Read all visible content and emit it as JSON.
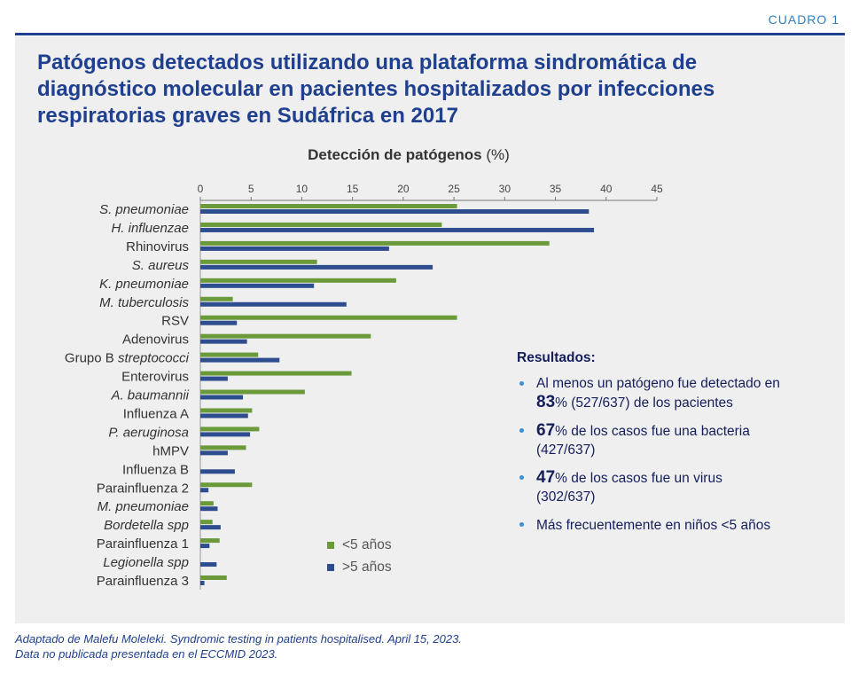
{
  "tag": "CUADRO 1",
  "title": "Patógenos detectados utilizando una plataforma sindromática de diagnóstico molecular en pacientes hospitalizados por infecciones respiratorias graves en Sudáfrica en 2017",
  "colors": {
    "accent": "#1f3f8f",
    "under5": "#6a9a3a",
    "over5": "#2e4d8f",
    "panel": "#efefef"
  },
  "chart_data": {
    "type": "bar",
    "orientation": "horizontal",
    "title": "Detección de patógenos",
    "title_unit": "(%)",
    "xlim": [
      0,
      45
    ],
    "ticks": [
      0,
      5,
      10,
      15,
      20,
      25,
      30,
      35,
      40,
      45
    ],
    "categories": [
      {
        "label": "S. pneumoniae",
        "italic": true
      },
      {
        "label": "H. influenzae",
        "italic": true
      },
      {
        "label": "Rhinovirus",
        "italic": false
      },
      {
        "label": "S. aureus",
        "italic": true
      },
      {
        "label": "K. pneumoniae",
        "italic": true
      },
      {
        "label": "M. tuberculosis",
        "italic": true
      },
      {
        "label": "RSV",
        "italic": false
      },
      {
        "label": "Adenovirus",
        "italic": false
      },
      {
        "label": "Grupo B ",
        "label_italic_part": "streptococci",
        "italic": false
      },
      {
        "label": "Enterovirus",
        "italic": false
      },
      {
        "label": "A. baumannii",
        "italic": true
      },
      {
        "label": "Influenza A",
        "italic": false
      },
      {
        "label": "P. aeruginosa",
        "italic": true
      },
      {
        "label": "hMPV",
        "italic": false
      },
      {
        "label": "Influenza B",
        "italic": false
      },
      {
        "label": "Parainfluenza 2",
        "italic": false
      },
      {
        "label": "M. pneumoniae",
        "italic": true
      },
      {
        "label": "Bordetella spp",
        "italic": true
      },
      {
        "label": "Parainfluenza 1",
        "italic": false
      },
      {
        "label": "Legionella spp",
        "italic": true
      },
      {
        "label": "Parainfluenza 3",
        "italic": false
      }
    ],
    "series": [
      {
        "name": "<5 años",
        "color": "#6a9a3a",
        "values": [
          25.3,
          23.8,
          34.4,
          11.5,
          19.3,
          3.2,
          25.3,
          16.8,
          5.7,
          14.9,
          10.3,
          5.1,
          5.8,
          4.5,
          0,
          5.1,
          1.3,
          1.2,
          1.9,
          0,
          2.6
        ]
      },
      {
        "name": ">5 años",
        "color": "#2e4d8f",
        "values": [
          38.3,
          38.8,
          18.6,
          22.9,
          11.2,
          14.4,
          3.6,
          4.6,
          7.8,
          2.7,
          4.2,
          4.7,
          4.9,
          2.7,
          3.4,
          0.8,
          1.7,
          2.0,
          0.9,
          1.6,
          0.4
        ]
      }
    ]
  },
  "results": {
    "heading": "Resultados:",
    "items": [
      {
        "pre": "Al menos un patógeno fue detectado en ",
        "big": "83",
        "post": "% (527/637) de los pacientes"
      },
      {
        "pre": "",
        "big": "67",
        "post": "% de los casos fue una bacteria (427/637)"
      },
      {
        "pre": "",
        "big": "47",
        "post": "% de los casos fue un virus (302/637)"
      },
      {
        "pre": "Más frecuentemente en niños <5 años",
        "big": "",
        "post": ""
      }
    ]
  },
  "legend": {
    "under5": "<5 años",
    "over5": ">5 años"
  },
  "footer": {
    "line1": "Adaptado de Malefu Moleleki. Syndromic testing in patients hospitalised. April 15, 2023.",
    "line2": "Data no publicada presentada en el ECCMID 2023."
  }
}
